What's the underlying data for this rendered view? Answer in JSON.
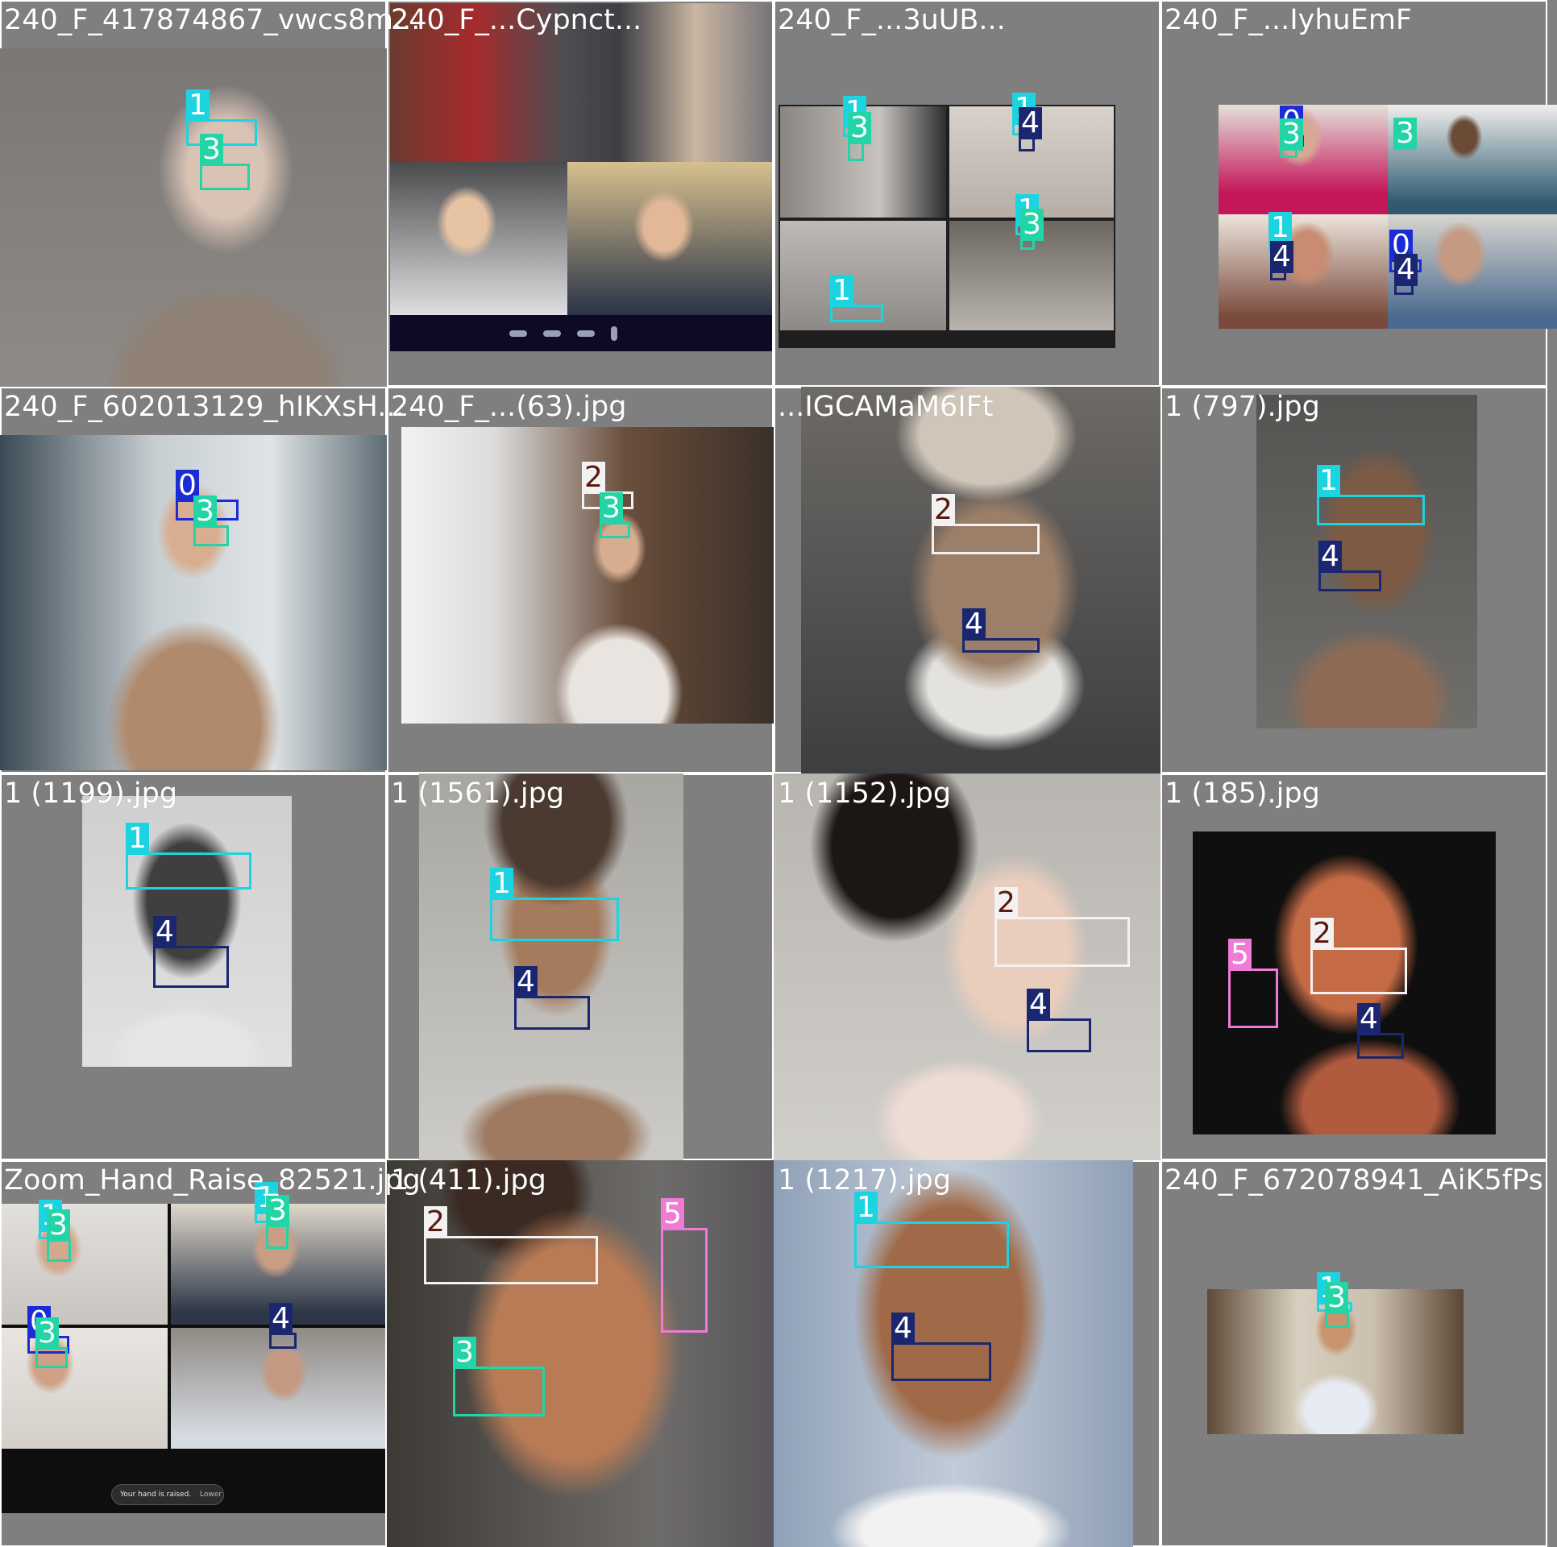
{
  "class_colors": {
    "0": "#1b2bd6",
    "1": "#1cd4e0",
    "2": "#f2f2f2",
    "3": "#22d4a6",
    "4": "#1a2670",
    "5": "#f07ad6"
  },
  "tiles": [
    {
      "label": "240_F_417874867_vwcs8m...",
      "boxes": [
        1,
        3
      ]
    },
    {
      "label": "240_F_...Cypnct...",
      "boxes": []
    },
    {
      "label": "240_F_...3uUB...",
      "boxes": [
        1,
        3,
        1,
        4,
        1,
        3,
        1
      ]
    },
    {
      "label": "240_F_...IyhuEmF",
      "boxes": [
        0,
        3,
        1,
        4,
        0,
        4
      ]
    },
    {
      "label": "240_F_602013129_hIKXsH...",
      "boxes": [
        0,
        3
      ]
    },
    {
      "label": "240_F_...(63).jpg",
      "boxes": [
        2,
        3
      ]
    },
    {
      "label": "...IGCAMaM6IFt",
      "boxes": [
        2,
        4
      ]
    },
    {
      "label": "1 (797).jpg",
      "boxes": [
        1,
        4
      ]
    },
    {
      "label": "1 (1199).jpg",
      "boxes": [
        1,
        4
      ]
    },
    {
      "label": "1 (1561).jpg",
      "boxes": [
        1,
        4
      ]
    },
    {
      "label": "1 (1152).jpg",
      "boxes": [
        2,
        4
      ]
    },
    {
      "label": "1 (185).jpg",
      "boxes": [
        5,
        2,
        4
      ]
    },
    {
      "label": "Zoom_Hand_Raise_82521.jpg",
      "boxes": [
        1,
        3,
        1,
        3,
        0,
        3,
        4
      ]
    },
    {
      "label": "1 (411).jpg",
      "boxes": [
        2,
        5,
        3
      ]
    },
    {
      "label": "1 (1217).jpg",
      "boxes": [
        1,
        4
      ]
    },
    {
      "label": "240_F_672078941_AiK5fPs",
      "boxes": [
        1,
        3
      ]
    }
  ],
  "zoom_notice": "Your hand is raised.",
  "zoom_lower": "Lower"
}
